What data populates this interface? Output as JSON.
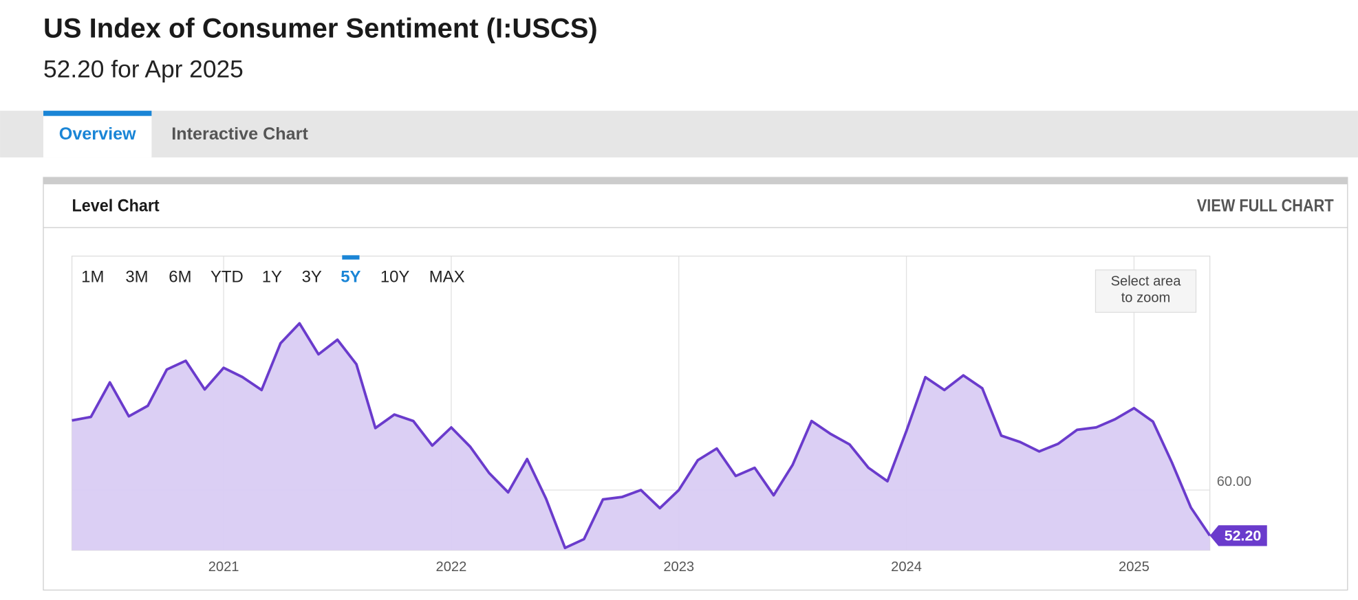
{
  "header": {
    "title": "US Index of Consumer Sentiment (I:USCS)",
    "subtitle": "52.20 for Apr 2025"
  },
  "tabs": [
    "Overview",
    "Interactive Chart"
  ],
  "selected_tab": "Overview",
  "card": {
    "title": "Level Chart",
    "action": "VIEW FULL CHART"
  },
  "range_buttons": [
    "1M",
    "3M",
    "6M",
    "YTD",
    "1Y",
    "3Y",
    "5Y",
    "10Y",
    "MAX"
  ],
  "selected_range": "5Y",
  "zoom_hint": [
    "Select area",
    "to zoom"
  ],
  "chart_data": {
    "type": "area",
    "color": "#6a3bcc",
    "fill": "#d9ccf3",
    "x": [
      "2020-04",
      "2020-05",
      "2020-06",
      "2020-07",
      "2020-08",
      "2020-09",
      "2020-10",
      "2020-11",
      "2020-12",
      "2021-01",
      "2021-02",
      "2021-03",
      "2021-04",
      "2021-05",
      "2021-06",
      "2021-07",
      "2021-08",
      "2021-09",
      "2021-10",
      "2021-11",
      "2021-12",
      "2022-01",
      "2022-02",
      "2022-03",
      "2022-04",
      "2022-05",
      "2022-06",
      "2022-07",
      "2022-08",
      "2022-09",
      "2022-10",
      "2022-11",
      "2022-12",
      "2023-01",
      "2023-02",
      "2023-03",
      "2023-04",
      "2023-05",
      "2023-06",
      "2023-07",
      "2023-08",
      "2023-09",
      "2023-10",
      "2023-11",
      "2023-12",
      "2024-01",
      "2024-02",
      "2024-03",
      "2024-04",
      "2024-05",
      "2024-06",
      "2024-07",
      "2024-08",
      "2024-09",
      "2024-10",
      "2024-11",
      "2024-12",
      "2025-01",
      "2025-02",
      "2025-03",
      "2025-04"
    ],
    "values": [
      71.9,
      72.5,
      78.4,
      72.6,
      74.4,
      80.6,
      82.1,
      77.2,
      80.9,
      79.3,
      77.1,
      85.1,
      88.5,
      83.2,
      85.7,
      81.5,
      70.6,
      72.9,
      71.8,
      67.6,
      70.7,
      67.4,
      62.9,
      59.6,
      65.3,
      58.5,
      50.1,
      51.6,
      58.4,
      58.8,
      60.0,
      56.9,
      60.0,
      65.1,
      67.1,
      62.4,
      63.8,
      59.1,
      64.3,
      71.8,
      69.6,
      67.8,
      63.8,
      61.5,
      70.1,
      79.3,
      77.1,
      79.6,
      77.4,
      69.3,
      68.2,
      66.6,
      67.9,
      70.3,
      70.7,
      72.1,
      74.0,
      71.7,
      64.7,
      57.0,
      52.2
    ],
    "current_label": "52.20",
    "xlim": [
      "2020-04",
      "2025-04"
    ],
    "xticks": [
      2021,
      2022,
      2023,
      2024,
      2025
    ],
    "ylim": [
      49.7,
      100
    ],
    "yticks": [
      {
        "value": 60,
        "label": "60.00"
      }
    ],
    "grid": true
  }
}
